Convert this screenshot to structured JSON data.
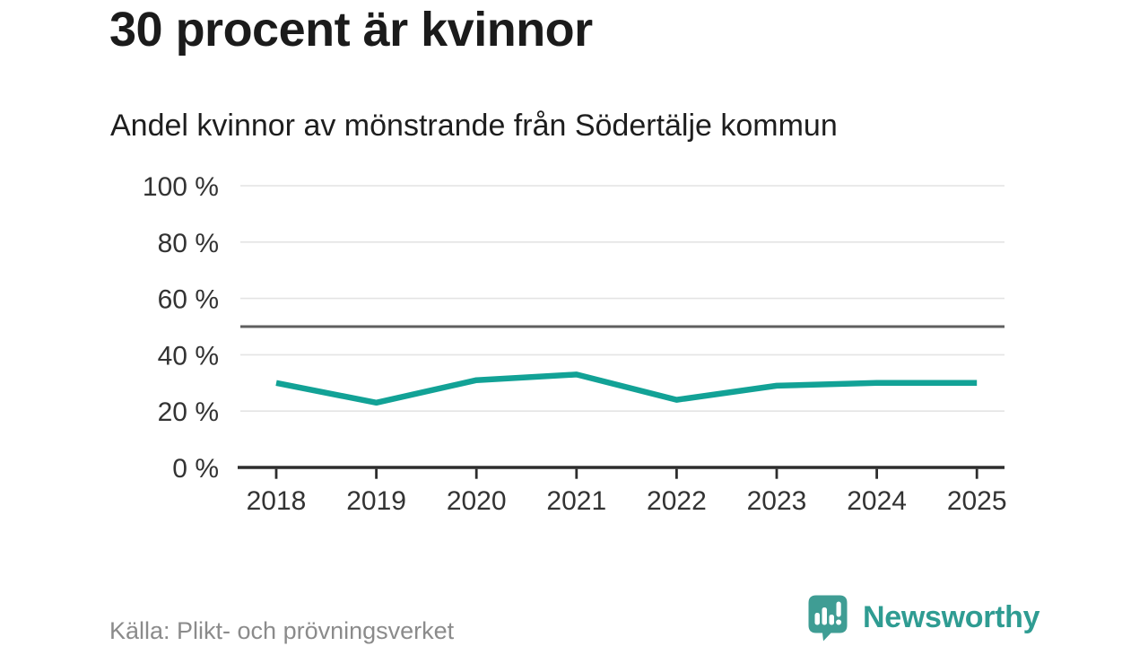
{
  "header": {
    "title": "30 procent är kvinnor",
    "subtitle": "Andel kvinnor av mönstrande från Södertälje kommun"
  },
  "chart_data": {
    "type": "line",
    "title": "30 procent är kvinnor",
    "subtitle": "Andel kvinnor av mönstrande från Södertälje kommun",
    "categories": [
      "2018",
      "2019",
      "2020",
      "2021",
      "2022",
      "2023",
      "2024",
      "2025"
    ],
    "values": [
      30,
      23,
      31,
      33,
      24,
      29,
      30,
      30
    ],
    "unit": "%",
    "ylim": [
      0,
      100
    ],
    "yticks": [
      {
        "value": 100,
        "label": "100 %"
      },
      {
        "value": 80,
        "label": "80 %"
      },
      {
        "value": 60,
        "label": "60 %"
      },
      {
        "value": 40,
        "label": "40 %"
      },
      {
        "value": 20,
        "label": "20 %"
      },
      {
        "value": 0,
        "label": "0 %"
      }
    ],
    "reference_line": {
      "value": 50
    },
    "grid": true,
    "legend": "none",
    "colors": {
      "series": "#12a296",
      "grid": "#e4e4e4",
      "axis": "#2d2d2d",
      "reference": "#5f5f5f",
      "tick_text": "#333333"
    }
  },
  "footer": {
    "source": "Källa: Plikt- och prövningsverket",
    "brand": {
      "name": "Newsworthy",
      "color": "#2f9c92",
      "icon": "speech-bubble-bar-chart-icon",
      "icon_color": "#3f9d94"
    }
  }
}
